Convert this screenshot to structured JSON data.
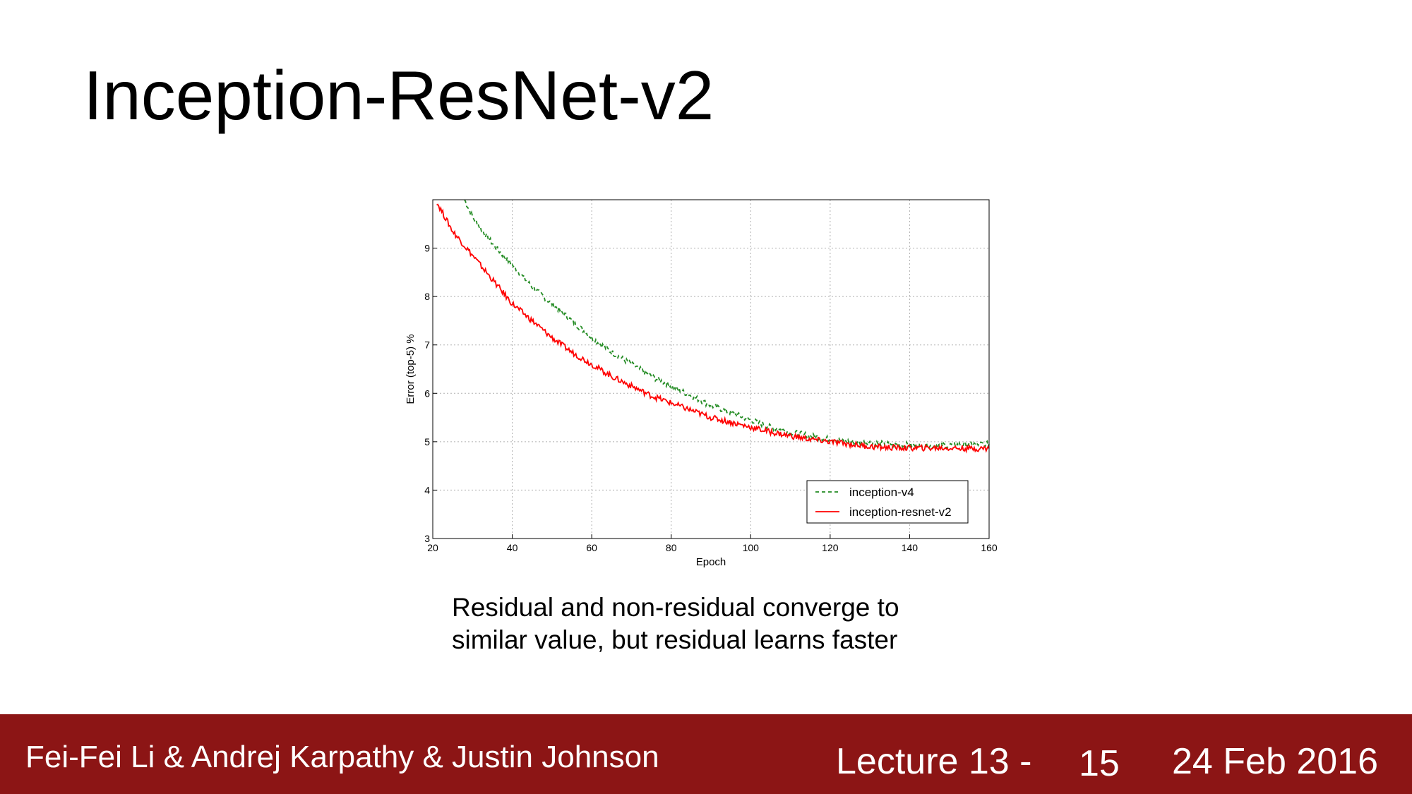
{
  "slide": {
    "title": "Inception-ResNet-v2",
    "caption_line1": "Residual and non-residual converge to",
    "caption_line2": "similar value, but residual learns faster"
  },
  "footer": {
    "authors": "Fei-Fei Li & Andrej Karpathy & Justin Johnson",
    "lecture": "Lecture 13 -",
    "page": "15",
    "date": "24 Feb 2016",
    "background_color": "#8c1515"
  },
  "chart_data": {
    "type": "line",
    "title": "",
    "xlabel": "Epoch",
    "ylabel": "Error (top-5) %",
    "xlim": [
      20,
      160
    ],
    "ylim": [
      3,
      10
    ],
    "xticks": [
      20,
      40,
      60,
      80,
      100,
      120,
      140,
      160
    ],
    "yticks": [
      3,
      4,
      5,
      6,
      7,
      8,
      9
    ],
    "grid": true,
    "legend_position": "lower-right",
    "series": [
      {
        "name": "inception-v4",
        "color": "#228b22",
        "style": "dashed",
        "x": [
          28,
          30,
          33,
          36,
          40,
          45,
          50,
          55,
          60,
          65,
          70,
          75,
          80,
          85,
          90,
          95,
          100,
          105,
          110,
          115,
          120,
          125,
          130,
          135,
          140,
          145,
          150,
          155,
          160
        ],
        "y": [
          10.0,
          9.65,
          9.3,
          9.0,
          8.65,
          8.2,
          7.85,
          7.5,
          7.15,
          6.85,
          6.6,
          6.35,
          6.15,
          5.95,
          5.75,
          5.6,
          5.45,
          5.3,
          5.2,
          5.12,
          5.05,
          5.0,
          4.98,
          4.95,
          4.93,
          4.92,
          4.93,
          4.95,
          4.95
        ]
      },
      {
        "name": "inception-resnet-v2",
        "color": "#ff0000",
        "style": "solid",
        "x": [
          21,
          23,
          25,
          28,
          30,
          33,
          36,
          40,
          45,
          50,
          55,
          60,
          65,
          70,
          75,
          80,
          85,
          90,
          95,
          100,
          105,
          110,
          115,
          120,
          125,
          130,
          135,
          140,
          145,
          150,
          155,
          160
        ],
        "y": [
          9.95,
          9.65,
          9.35,
          9.05,
          8.85,
          8.55,
          8.25,
          7.85,
          7.5,
          7.15,
          6.85,
          6.6,
          6.35,
          6.15,
          5.95,
          5.8,
          5.65,
          5.5,
          5.4,
          5.3,
          5.2,
          5.12,
          5.05,
          5.0,
          4.95,
          4.9,
          4.88,
          4.87,
          4.87,
          4.87,
          4.86,
          4.86
        ]
      }
    ]
  }
}
